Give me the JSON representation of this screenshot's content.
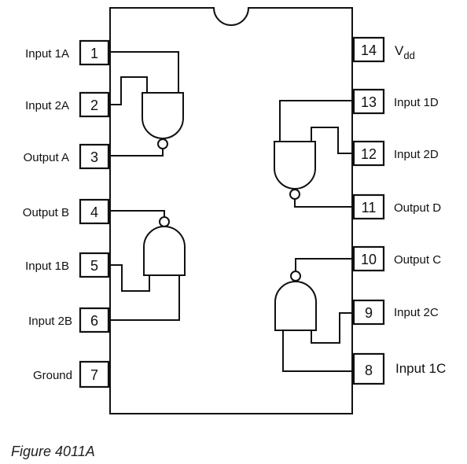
{
  "chip": {
    "left_pins": [
      {
        "number": "1",
        "label": "Input 1A"
      },
      {
        "number": "2",
        "label": "Input 2A"
      },
      {
        "number": "3",
        "label": "Output A"
      },
      {
        "number": "4",
        "label": "Output B"
      },
      {
        "number": "5",
        "label": "Input 1B"
      },
      {
        "number": "6",
        "label": "Input 2B"
      },
      {
        "number": "7",
        "label": "Ground"
      }
    ],
    "right_pins": [
      {
        "number": "14",
        "label": "V",
        "subscript": "dd"
      },
      {
        "number": "13",
        "label": "Input 1D"
      },
      {
        "number": "12",
        "label": "Input 2D"
      },
      {
        "number": "11",
        "label": "Output D"
      },
      {
        "number": "10",
        "label": "Output C"
      },
      {
        "number": "9",
        "label": "Input 2C"
      },
      {
        "number": "8",
        "label": "Input 1C"
      }
    ]
  },
  "caption": "Figure 4011A",
  "colors": {
    "line": "#111111",
    "background": "#ffffff"
  }
}
